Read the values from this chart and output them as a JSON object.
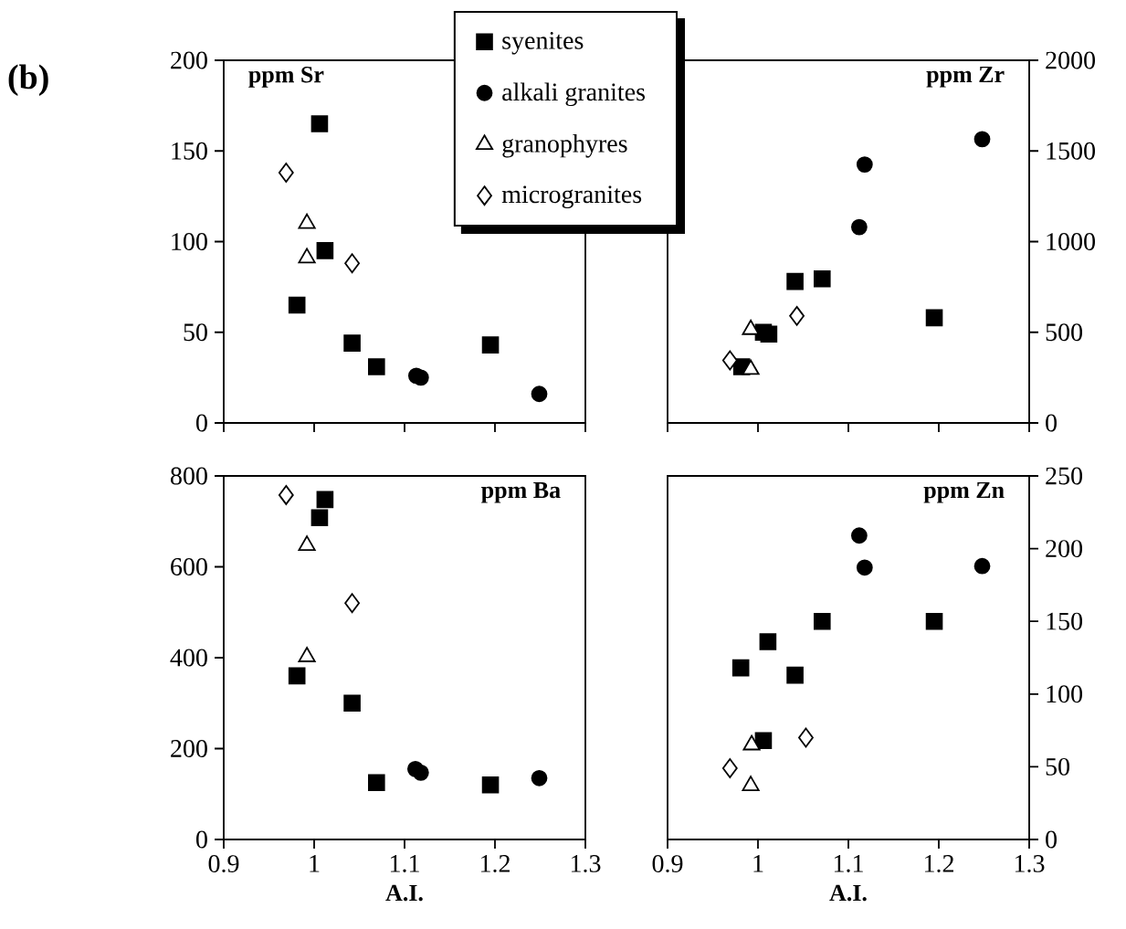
{
  "chart_data": [
    {
      "type": "scatter",
      "title": "**ppm Sr**",
      "annotations": [
        "**(b)**"
      ],
      "legend": "top right",
      "tick_labels": "y",
      "xlim": [
        0.9,
        1.3
      ],
      "xticks": [
        0.9,
        1,
        1.1,
        1.2,
        1.3
      ],
      "ylim": [
        0,
        200
      ],
      "yticks": [
        0,
        50,
        100,
        150,
        200
      ],
      "series": [
        {
          "name": "syenites",
          "color": "#000000",
          "marker": "square",
          "x": [
            1.006,
            1.012,
            0.981,
            1.042,
            1.069,
            1.195
          ],
          "values": [
            165,
            95,
            65,
            44,
            31,
            43
          ]
        },
        {
          "name": "alkali granites",
          "color": "#000000",
          "marker": "circle",
          "x": [
            1.113,
            1.118,
            1.249
          ],
          "values": [
            26,
            25,
            16
          ]
        },
        {
          "name": "granophyres",
          "color": "#000000",
          "marker": "triangle",
          "x": [
            0.992,
            0.992
          ],
          "values": [
            110,
            91
          ]
        },
        {
          "name": "microgranites",
          "color": "#000000",
          "marker": "diamond",
          "x": [
            0.969,
            1.042
          ],
          "values": [
            138,
            88
          ]
        }
      ]
    },
    {
      "type": "scatter",
      "title": "**ppm Zr**",
      "tick_labels": "y",
      "xlim": [
        0.9,
        1.3
      ],
      "xticks": [
        0.9,
        1,
        1.1,
        1.2,
        1.3
      ],
      "ylim": [
        0,
        2000
      ],
      "yticks": [
        0,
        500,
        1000,
        1500,
        2000
      ],
      "series": [
        {
          "color": "#000000",
          "marker": "square",
          "x": [
            1.006,
            1.012,
            0.982,
            1.041,
            1.071,
            1.195
          ],
          "values": [
            500,
            490,
            310,
            780,
            795,
            580
          ]
        },
        {
          "color": "#000000",
          "marker": "circle",
          "x": [
            1.112,
            1.118,
            1.248
          ],
          "values": [
            1080,
            1425,
            1565
          ]
        },
        {
          "color": "#000000",
          "marker": "triangle",
          "x": [
            0.992,
            0.992
          ],
          "values": [
            515,
            295
          ]
        },
        {
          "color": "#000000",
          "marker": "diamond",
          "x": [
            0.969,
            1.043
          ],
          "values": [
            345,
            590
          ]
        }
      ]
    },
    {
      "type": "scatter",
      "title": "**ppm Ba**",
      "xlabel": "**A.I.**",
      "xlim": [
        0.9,
        1.3
      ],
      "xticks": [
        0.9,
        1,
        1.1,
        1.2,
        1.3
      ],
      "ylim": [
        0,
        800
      ],
      "yticks": [
        0,
        200,
        400,
        600,
        800
      ],
      "series": [
        {
          "color": "#000000",
          "marker": "square",
          "x": [
            1.012,
            1.006,
            0.981,
            1.042,
            1.069,
            1.195
          ],
          "values": [
            748,
            708,
            360,
            300,
            125,
            120
          ]
        },
        {
          "color": "#000000",
          "marker": "circle",
          "x": [
            1.112,
            1.118,
            1.249
          ],
          "values": [
            155,
            147,
            135
          ]
        },
        {
          "color": "#000000",
          "marker": "triangle",
          "x": [
            0.992,
            0.992
          ],
          "values": [
            647,
            402
          ]
        },
        {
          "color": "#000000",
          "marker": "diamond",
          "x": [
            0.969,
            1.042
          ],
          "values": [
            758,
            520
          ]
        }
      ]
    },
    {
      "type": "scatter",
      "title": "**ppm Zn**",
      "xlabel": "**A.I.**",
      "xlim": [
        0.9,
        1.3
      ],
      "xticks": [
        0.9,
        1,
        1.1,
        1.2,
        1.3
      ],
      "ylim": [
        0,
        250
      ],
      "yticks": [
        0,
        50,
        100,
        150,
        200,
        250
      ],
      "series": [
        {
          "color": "#000000",
          "marker": "square",
          "x": [
            0.981,
            1.011,
            1.006,
            1.041,
            1.071,
            1.195
          ],
          "values": [
            118,
            136,
            68,
            113,
            150,
            150
          ]
        },
        {
          "color": "#000000",
          "marker": "circle",
          "x": [
            1.112,
            1.118,
            1.248
          ],
          "values": [
            209,
            187,
            188
          ]
        },
        {
          "color": "#000000",
          "marker": "triangle",
          "x": [
            0.993,
            0.992
          ],
          "values": [
            65,
            37
          ]
        },
        {
          "color": "#000000",
          "marker": "diamond",
          "x": [
            0.969,
            1.053
          ],
          "values": [
            49,
            70
          ]
        }
      ]
    }
  ]
}
